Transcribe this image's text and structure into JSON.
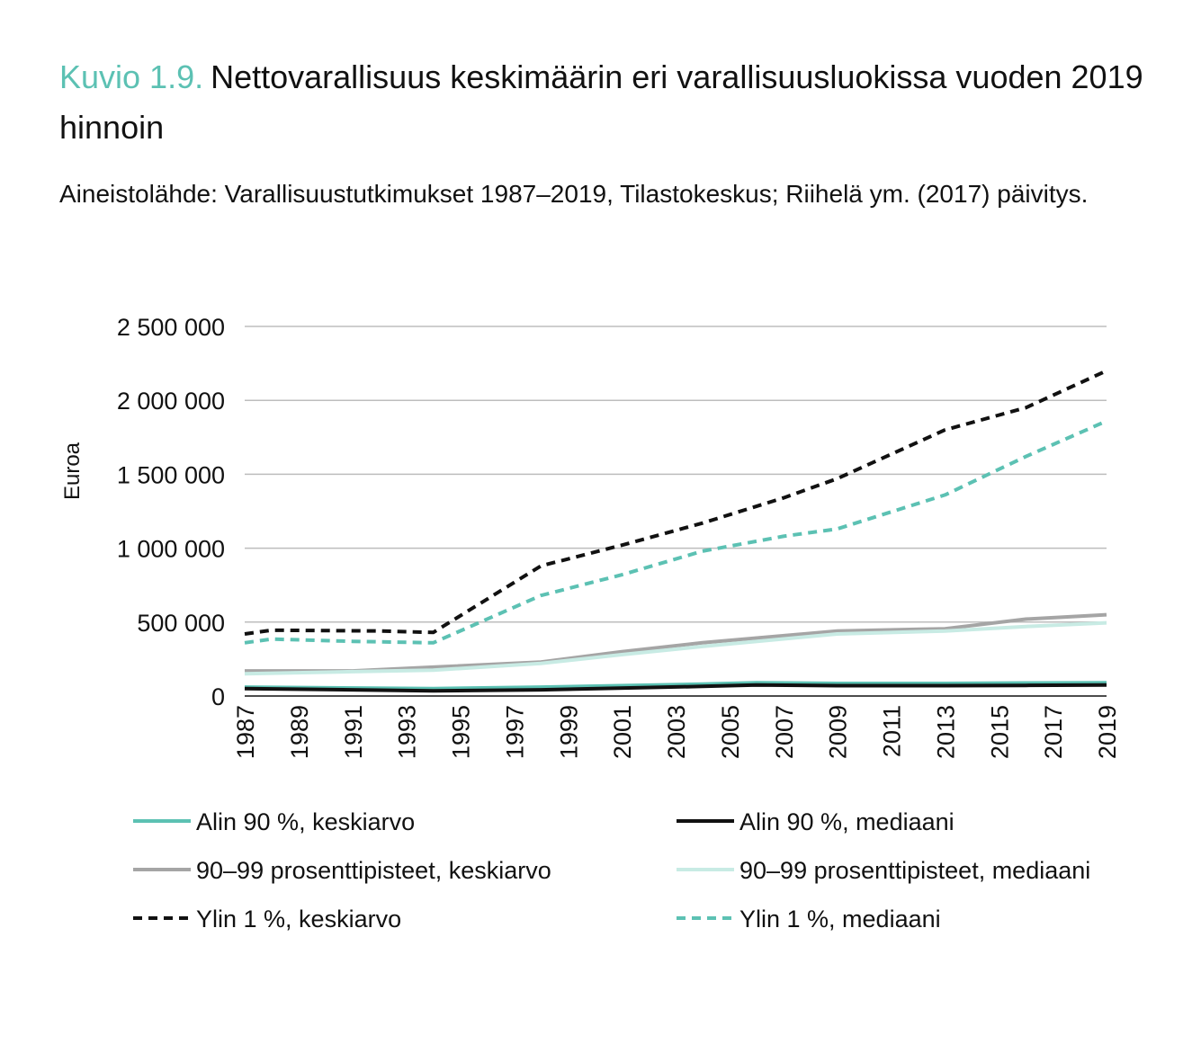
{
  "figure": {
    "number": "Kuvio 1.9.",
    "title": "Nettovarallisuus keskimäärin eri varallisuusluokissa vuoden 2019 hinnoin",
    "source": "Aineistolähde: Varallisuustutkimukset 1987–2019, Tilastokeskus; Riihelä ym. (2017) päivitys."
  },
  "chart_data": {
    "type": "line",
    "ylabel": "Euroa",
    "ylim": [
      0,
      2500000
    ],
    "yticks": [
      0,
      500000,
      1000000,
      1500000,
      2000000,
      2500000
    ],
    "ytick_labels": [
      "0",
      "500 000",
      "1 000 000",
      "1 500 000",
      "2 000 000",
      "2 500 000"
    ],
    "xtick_labels": [
      "1987",
      "1989",
      "1991",
      "1993",
      "1995",
      "1997",
      "1999",
      "2001",
      "2003",
      "2005",
      "2007",
      "2009",
      "2011",
      "2013",
      "2015",
      "2017",
      "2019"
    ],
    "grid": true,
    "legend_position": "bottom",
    "series": [
      {
        "name": "Alin 90 %, keskiarvo",
        "color": "#5cc1b3",
        "dash": "solid",
        "x": [
          1987,
          1994,
          1998,
          2004,
          2006,
          2009,
          2013,
          2016,
          2019
        ],
        "y": [
          60000,
          50000,
          60000,
          80000,
          90000,
          85000,
          85000,
          88000,
          90000
        ]
      },
      {
        "name": "Alin 90 %, mediaani",
        "color": "#111111",
        "dash": "solid",
        "x": [
          1987,
          1994,
          1998,
          2004,
          2006,
          2009,
          2013,
          2016,
          2019
        ],
        "y": [
          50000,
          35000,
          42000,
          65000,
          75000,
          70000,
          70000,
          72000,
          75000
        ]
      },
      {
        "name": "90–99 prosenttipisteet, keskiarvo",
        "color": "#a5a5a5",
        "dash": "solid",
        "x": [
          1987,
          1991,
          1994,
          1998,
          2001,
          2004,
          2009,
          2013,
          2016,
          2019
        ],
        "y": [
          170000,
          170000,
          195000,
          230000,
          300000,
          360000,
          440000,
          455000,
          520000,
          550000
        ]
      },
      {
        "name": "90–99 prosenttipisteet, mediaani",
        "color": "#c8ebe4",
        "dash": "solid",
        "x": [
          1987,
          1991,
          1994,
          1998,
          2001,
          2004,
          2009,
          2013,
          2016,
          2019
        ],
        "y": [
          150000,
          165000,
          175000,
          220000,
          280000,
          335000,
          420000,
          440000,
          470000,
          495000
        ]
      },
      {
        "name": "Ylin 1 %, keskiarvo",
        "color": "#111111",
        "dash": "dashed",
        "x": [
          1987,
          1988,
          1992,
          1994,
          1998,
          2001,
          2004,
          2007,
          2009,
          2013,
          2016,
          2019
        ],
        "y": [
          420000,
          445000,
          440000,
          430000,
          880000,
          1020000,
          1170000,
          1340000,
          1470000,
          1800000,
          1950000,
          2200000
        ]
      },
      {
        "name": "Ylin 1 %, mediaani",
        "color": "#5cc1b3",
        "dash": "dashed",
        "x": [
          1987,
          1988,
          1991,
          1994,
          1998,
          2001,
          2004,
          2007,
          2009,
          2013,
          2016,
          2019
        ],
        "y": [
          360000,
          385000,
          370000,
          360000,
          680000,
          820000,
          980000,
          1080000,
          1130000,
          1360000,
          1620000,
          1860000
        ]
      }
    ]
  }
}
